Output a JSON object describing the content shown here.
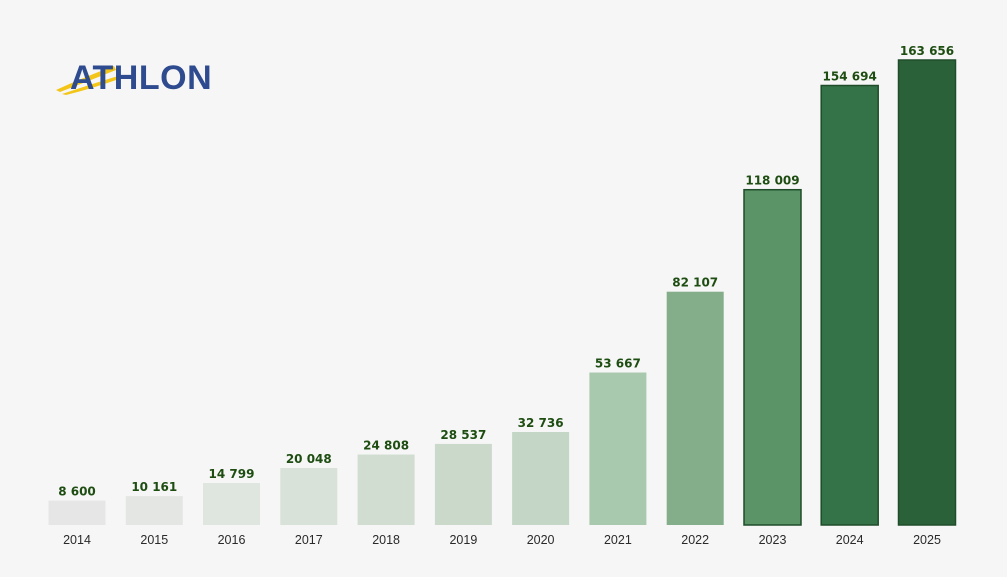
{
  "brand": {
    "logo_text": "ATHLON",
    "logo_color": "#2e4b8f",
    "swoosh_color": "#f2c518"
  },
  "chart_data": {
    "type": "bar",
    "title": "",
    "xlabel": "",
    "ylabel": "",
    "categories": [
      "2014",
      "2015",
      "2016",
      "2017",
      "2018",
      "2019",
      "2020",
      "2021",
      "2022",
      "2023",
      "2024",
      "2025"
    ],
    "values": [
      8600,
      10161,
      14799,
      20048,
      24808,
      28537,
      32736,
      53667,
      82107,
      118009,
      154694,
      163656
    ],
    "labels": [
      "8 600",
      "10 161",
      "14 799",
      "20 048",
      "24 808",
      "28 537",
      "32 736",
      "53 667",
      "82 107",
      "118 009",
      "154 694",
      "163 656"
    ],
    "ylim": [
      0,
      163656
    ],
    "grid": false,
    "legend": "none",
    "bar_colors": [
      "#e6e6e6",
      "#e3e6e3",
      "#dfe5df",
      "#d8e2d8",
      "#d2ddd2",
      "#cbd9cb",
      "#c4d6c5",
      "#a9c9ae",
      "#84ae8a",
      "#5a9467",
      "#347347",
      "#2a6139"
    ]
  }
}
